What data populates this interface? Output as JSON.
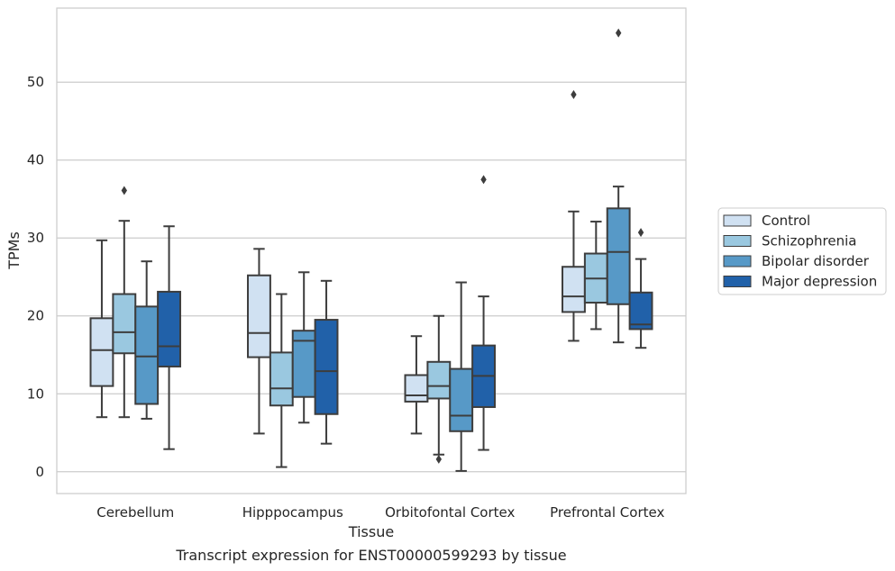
{
  "chart_data": {
    "type": "box",
    "xlabel": "Tissue",
    "ylabel": "TPMs",
    "caption": "Transcript expression for ENST00000599293 by tissue",
    "ylim": [
      -2.8,
      59.5
    ],
    "yticks": [
      0,
      10,
      20,
      30,
      40,
      50
    ],
    "grid": "horizontal",
    "legend_position": "right",
    "categories": [
      "Cerebellum",
      "Hipppocampus",
      "Orbitofontal Cortex",
      "Prefrontal Cortex"
    ],
    "series": [
      {
        "name": "Control",
        "color": "#d0e1f2",
        "boxes": [
          {
            "whislo": 7.0,
            "q1": 11.0,
            "med": 15.6,
            "q3": 19.7,
            "whishi": 29.7,
            "fliers": []
          },
          {
            "whislo": 4.9,
            "q1": 14.7,
            "med": 17.8,
            "q3": 25.2,
            "whishi": 28.6,
            "fliers": []
          },
          {
            "whislo": 4.9,
            "q1": 9.0,
            "med": 9.8,
            "q3": 12.4,
            "whishi": 17.4,
            "fliers": []
          },
          {
            "whislo": 16.8,
            "q1": 20.5,
            "med": 22.5,
            "q3": 26.3,
            "whishi": 33.4,
            "fliers": [
              48.4
            ]
          }
        ]
      },
      {
        "name": "Schizophrenia",
        "color": "#9ac8e0",
        "boxes": [
          {
            "whislo": 7.0,
            "q1": 15.2,
            "med": 17.9,
            "q3": 22.8,
            "whishi": 32.2,
            "fliers": [
              36.1
            ]
          },
          {
            "whislo": 0.6,
            "q1": 8.5,
            "med": 10.7,
            "q3": 15.3,
            "whishi": 22.8,
            "fliers": []
          },
          {
            "whislo": 2.2,
            "q1": 9.4,
            "med": 11.0,
            "q3": 14.1,
            "whishi": 20.0,
            "fliers": [
              1.6
            ]
          },
          {
            "whislo": 18.3,
            "q1": 21.7,
            "med": 24.8,
            "q3": 28.0,
            "whishi": 32.1,
            "fliers": []
          }
        ]
      },
      {
        "name": "Bipolar disorder",
        "color": "#5799c7",
        "boxes": [
          {
            "whislo": 6.8,
            "q1": 8.7,
            "med": 14.8,
            "q3": 21.2,
            "whishi": 27.0,
            "fliers": []
          },
          {
            "whislo": 6.3,
            "q1": 9.6,
            "med": 16.8,
            "q3": 18.1,
            "whishi": 25.6,
            "fliers": []
          },
          {
            "whislo": 0.1,
            "q1": 5.2,
            "med": 7.2,
            "q3": 13.2,
            "whishi": 24.3,
            "fliers": []
          },
          {
            "whislo": 16.6,
            "q1": 21.5,
            "med": 28.2,
            "q3": 33.8,
            "whishi": 36.6,
            "fliers": [
              56.3
            ]
          }
        ]
      },
      {
        "name": "Major depression",
        "color": "#2161a9",
        "boxes": [
          {
            "whislo": 2.9,
            "q1": 13.5,
            "med": 16.1,
            "q3": 23.1,
            "whishi": 31.5,
            "fliers": []
          },
          {
            "whislo": 3.6,
            "q1": 7.4,
            "med": 12.9,
            "q3": 19.5,
            "whishi": 24.5,
            "fliers": []
          },
          {
            "whislo": 2.8,
            "q1": 8.3,
            "med": 12.3,
            "q3": 16.2,
            "whishi": 22.5,
            "fliers": [
              37.5
            ]
          },
          {
            "whislo": 15.9,
            "q1": 18.3,
            "med": 18.9,
            "q3": 23.0,
            "whishi": 27.3,
            "fliers": [
              30.7
            ]
          }
        ]
      }
    ]
  }
}
